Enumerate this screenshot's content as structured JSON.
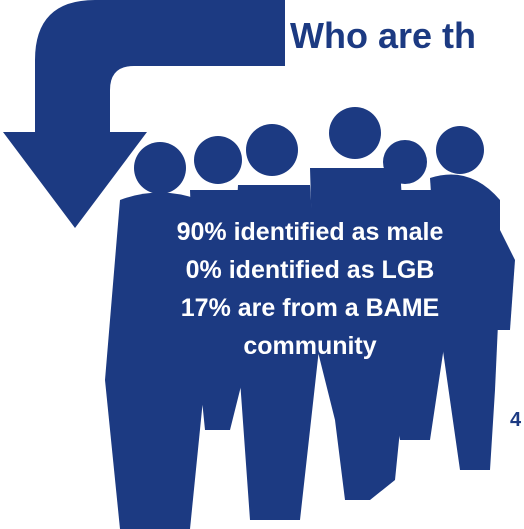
{
  "title": "Who are th",
  "stats": [
    "90% identified as male",
    "0% identified as LGB",
    "17% are from a BAME",
    "community"
  ],
  "footnote": "4"
}
